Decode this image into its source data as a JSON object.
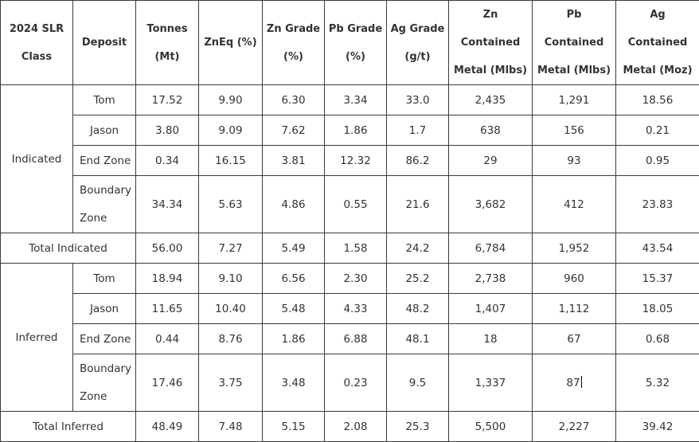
{
  "headers": {
    "class": "2024 SLR Class",
    "deposit": "Deposit",
    "tonnes": "Tonnes (Mt)",
    "zneq": "ZnEq (%)",
    "zn_grade": "Zn Grade (%)",
    "pb_grade": "Pb Grade (%)",
    "ag_grade": "Ag Grade (g/t)",
    "zn_metal": "Zn Contained Metal (Mlbs)",
    "pb_metal": "Pb Contained Metal (Mlbs)",
    "ag_metal": "Ag Contained Metal (Moz)"
  },
  "indicated": {
    "label": "Indicated",
    "rows": [
      {
        "deposit": "Tom",
        "tonnes": "17.52",
        "zneq": "9.90",
        "zn": "6.30",
        "pb": "3.34",
        "ag": "33.0",
        "zn_metal": "2,435",
        "pb_metal": "1,291",
        "ag_metal": "18.56"
      },
      {
        "deposit": "Jason",
        "tonnes": "3.80",
        "zneq": "9.09",
        "zn": "7.62",
        "pb": "1.86",
        "ag": "1.7",
        "zn_metal": "638",
        "pb_metal": "156",
        "ag_metal": "0.21"
      },
      {
        "deposit": "End Zone",
        "tonnes": "0.34",
        "zneq": "16.15",
        "zn": "3.81",
        "pb": "12.32",
        "ag": "86.2",
        "zn_metal": "29",
        "pb_metal": "93",
        "ag_metal": "0.95"
      },
      {
        "deposit": "Boundary Zone",
        "tonnes": "34.34",
        "zneq": "5.63",
        "zn": "4.86",
        "pb": "0.55",
        "ag": "21.6",
        "zn_metal": "3,682",
        "pb_metal": "412",
        "ag_metal": "23.83"
      }
    ],
    "total": {
      "label": "Total Indicated",
      "tonnes": "56.00",
      "zneq": "7.27",
      "zn": "5.49",
      "pb": "1.58",
      "ag": "24.2",
      "zn_metal": "6,784",
      "pb_metal": "1,952",
      "ag_metal": "43.54"
    }
  },
  "inferred": {
    "label": "Inferred",
    "rows": [
      {
        "deposit": "Tom",
        "tonnes": "18.94",
        "zneq": "9.10",
        "zn": "6.56",
        "pb": "2.30",
        "ag": "25.2",
        "zn_metal": "2,738",
        "pb_metal": "960",
        "ag_metal": "15.37"
      },
      {
        "deposit": "Jason",
        "tonnes": "11.65",
        "zneq": "10.40",
        "zn": "5.48",
        "pb": "4.33",
        "ag": "48.2",
        "zn_metal": "1,407",
        "pb_metal": "1,112",
        "ag_metal": "18.05"
      },
      {
        "deposit": "End Zone",
        "tonnes": "0.44",
        "zneq": "8.76",
        "zn": "1.86",
        "pb": "6.88",
        "ag": "48.1",
        "zn_metal": "18",
        "pb_metal": "67",
        "ag_metal": "0.68"
      },
      {
        "deposit": "Boundary Zone",
        "tonnes": "17.46",
        "zneq": "3.75",
        "zn": "3.48",
        "pb": "0.23",
        "ag": "9.5",
        "zn_metal": "1,337",
        "pb_metal": "87",
        "ag_metal": "5.32"
      }
    ],
    "total": {
      "label": "Total Inferred",
      "tonnes": "48.49",
      "zneq": "7.48",
      "zn": "5.15",
      "pb": "2.08",
      "ag": "25.3",
      "zn_metal": "5,500",
      "pb_metal": "2,227",
      "ag_metal": "39.42"
    }
  }
}
